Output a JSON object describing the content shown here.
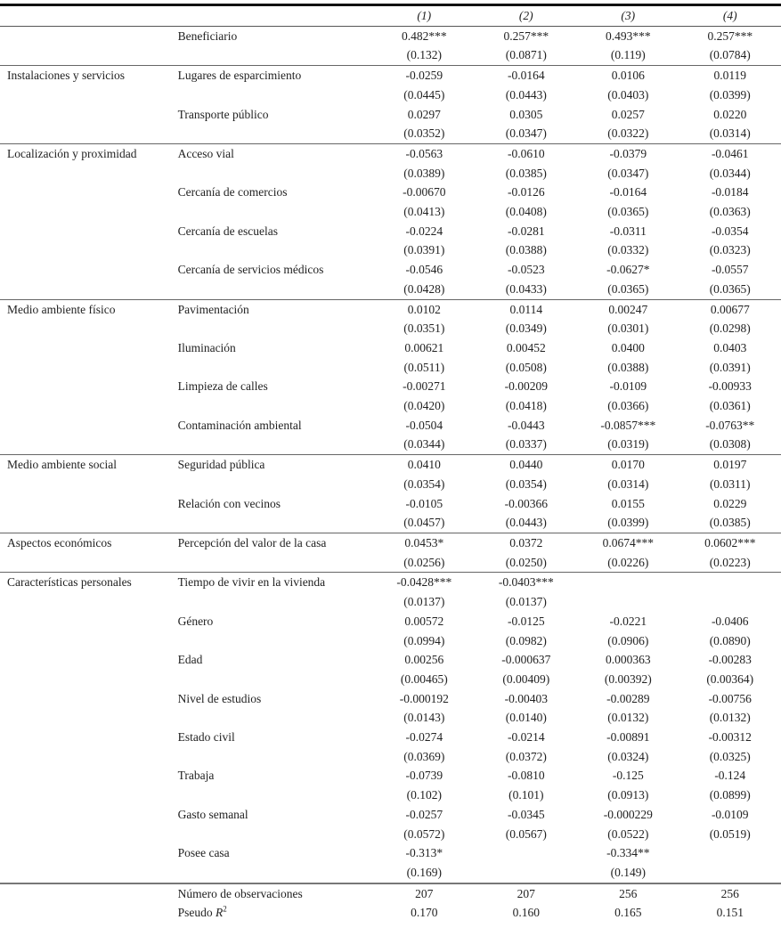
{
  "header": {
    "columns": [
      "(1)",
      "(2)",
      "(3)",
      "(4)"
    ]
  },
  "groups": [
    {
      "label": "",
      "variables": [
        {
          "name": "Beneficiario",
          "coef": [
            "0.482***",
            "0.257***",
            "0.493***",
            "0.257***"
          ],
          "se": [
            "(0.132)",
            "(0.0871)",
            "(0.119)",
            "(0.0784)"
          ]
        }
      ]
    },
    {
      "label": "Instalaciones y servicios",
      "variables": [
        {
          "name": "Lugares de esparcimiento",
          "coef": [
            "-0.0259",
            "-0.0164",
            "0.0106",
            "0.0119"
          ],
          "se": [
            "(0.0445)",
            "(0.0443)",
            "(0.0403)",
            "(0.0399)"
          ]
        },
        {
          "name": "Transporte público",
          "coef": [
            "0.0297",
            "0.0305",
            "0.0257",
            "0.0220"
          ],
          "se": [
            "(0.0352)",
            "(0.0347)",
            "(0.0322)",
            "(0.0314)"
          ]
        }
      ]
    },
    {
      "label": "Localización y proximidad",
      "variables": [
        {
          "name": "Acceso vial",
          "coef": [
            "-0.0563",
            "-0.0610",
            "-0.0379",
            "-0.0461"
          ],
          "se": [
            "(0.0389)",
            "(0.0385)",
            "(0.0347)",
            "(0.0344)"
          ]
        },
        {
          "name": "Cercanía de comercios",
          "coef": [
            "-0.00670",
            "-0.0126",
            "-0.0164",
            "-0.0184"
          ],
          "se": [
            "(0.0413)",
            "(0.0408)",
            "(0.0365)",
            "(0.0363)"
          ]
        },
        {
          "name": "Cercanía de escuelas",
          "coef": [
            "-0.0224",
            "-0.0281",
            "-0.0311",
            "-0.0354"
          ],
          "se": [
            "(0.0391)",
            "(0.0388)",
            "(0.0332)",
            "(0.0323)"
          ]
        },
        {
          "name": "Cercanía de servicios médicos",
          "coef": [
            "-0.0546",
            "-0.0523",
            "-0.0627*",
            "-0.0557"
          ],
          "se": [
            "(0.0428)",
            "(0.0433)",
            "(0.0365)",
            "(0.0365)"
          ]
        }
      ]
    },
    {
      "label": "Medio ambiente físico",
      "variables": [
        {
          "name": "Pavimentación",
          "coef": [
            "0.0102",
            "0.0114",
            "0.00247",
            "0.00677"
          ],
          "se": [
            "(0.0351)",
            "(0.0349)",
            "(0.0301)",
            "(0.0298)"
          ]
        },
        {
          "name": "Iluminación",
          "coef": [
            "0.00621",
            "0.00452",
            "0.0400",
            "0.0403"
          ],
          "se": [
            "(0.0511)",
            "(0.0508)",
            "(0.0388)",
            "(0.0391)"
          ]
        },
        {
          "name": "Limpieza de calles",
          "coef": [
            "-0.00271",
            "-0.00209",
            "-0.0109",
            "-0.00933"
          ],
          "se": [
            "(0.0420)",
            "(0.0418)",
            "(0.0366)",
            "(0.0361)"
          ]
        },
        {
          "name": "Contaminación ambiental",
          "coef": [
            "-0.0504",
            "-0.0443",
            "-0.0857***",
            "-0.0763**"
          ],
          "se": [
            "(0.0344)",
            "(0.0337)",
            "(0.0319)",
            "(0.0308)"
          ]
        }
      ]
    },
    {
      "label": "Medio ambiente social",
      "variables": [
        {
          "name": "Seguridad pública",
          "coef": [
            "0.0410",
            "0.0440",
            "0.0170",
            "0.0197"
          ],
          "se": [
            "(0.0354)",
            "(0.0354)",
            "(0.0314)",
            "(0.0311)"
          ]
        },
        {
          "name": "Relación con vecinos",
          "coef": [
            "-0.0105",
            "-0.00366",
            "0.0155",
            "0.0229"
          ],
          "se": [
            "(0.0457)",
            "(0.0443)",
            "(0.0399)",
            "(0.0385)"
          ]
        }
      ]
    },
    {
      "label": "Aspectos económicos",
      "variables": [
        {
          "name": "Percepción del valor de la casa",
          "coef": [
            "0.0453*",
            "0.0372",
            "0.0674***",
            "0.0602***"
          ],
          "se": [
            "(0.0256)",
            "(0.0250)",
            "(0.0226)",
            "(0.0223)"
          ]
        }
      ]
    },
    {
      "label": "Características personales",
      "variables": [
        {
          "name": "Tiempo de vivir en la vivienda",
          "coef": [
            "-0.0428***",
            "-0.0403***",
            "",
            ""
          ],
          "se": [
            "(0.0137)",
            "(0.0137)",
            "",
            ""
          ]
        },
        {
          "name": "Género",
          "coef": [
            "0.00572",
            "-0.0125",
            "-0.0221",
            "-0.0406"
          ],
          "se": [
            "(0.0994)",
            "(0.0982)",
            "(0.0906)",
            "(0.0890)"
          ]
        },
        {
          "name": "Edad",
          "coef": [
            "0.00256",
            "-0.000637",
            "0.000363",
            "-0.00283"
          ],
          "se": [
            "(0.00465)",
            "(0.00409)",
            "(0.00392)",
            "(0.00364)"
          ]
        },
        {
          "name": "Nivel de estudios",
          "coef": [
            "-0.000192",
            "-0.00403",
            "-0.00289",
            "-0.00756"
          ],
          "se": [
            "(0.0143)",
            "(0.0140)",
            "(0.0132)",
            "(0.0132)"
          ]
        },
        {
          "name": "Estado civil",
          "coef": [
            "-0.0274",
            "-0.0214",
            "-0.00891",
            "-0.00312"
          ],
          "se": [
            "(0.0369)",
            "(0.0372)",
            "(0.0324)",
            "(0.0325)"
          ]
        },
        {
          "name": "Trabaja",
          "coef": [
            "-0.0739",
            "-0.0810",
            "-0.125",
            "-0.124"
          ],
          "se": [
            "(0.102)",
            "(0.101)",
            "(0.0913)",
            "(0.0899)"
          ]
        },
        {
          "name": "Gasto semanal",
          "coef": [
            "-0.0257",
            "-0.0345",
            "-0.000229",
            "-0.0109"
          ],
          "se": [
            "(0.0572)",
            "(0.0567)",
            "(0.0522)",
            "(0.0519)"
          ]
        },
        {
          "name": "Posee casa",
          "coef": [
            "-0.313*",
            "",
            "-0.334**",
            ""
          ],
          "se": [
            "(0.169)",
            "",
            "(0.149)",
            ""
          ]
        }
      ]
    }
  ],
  "footer": {
    "observations": {
      "label": "Número de observaciones",
      "values": [
        "207",
        "207",
        "256",
        "256"
      ]
    },
    "pseudo_r2": {
      "label_prefix": "Pseudo ",
      "label_var": "R",
      "label_sup": "2",
      "values": [
        "0.170",
        "0.160",
        "0.165",
        "0.151"
      ]
    }
  }
}
